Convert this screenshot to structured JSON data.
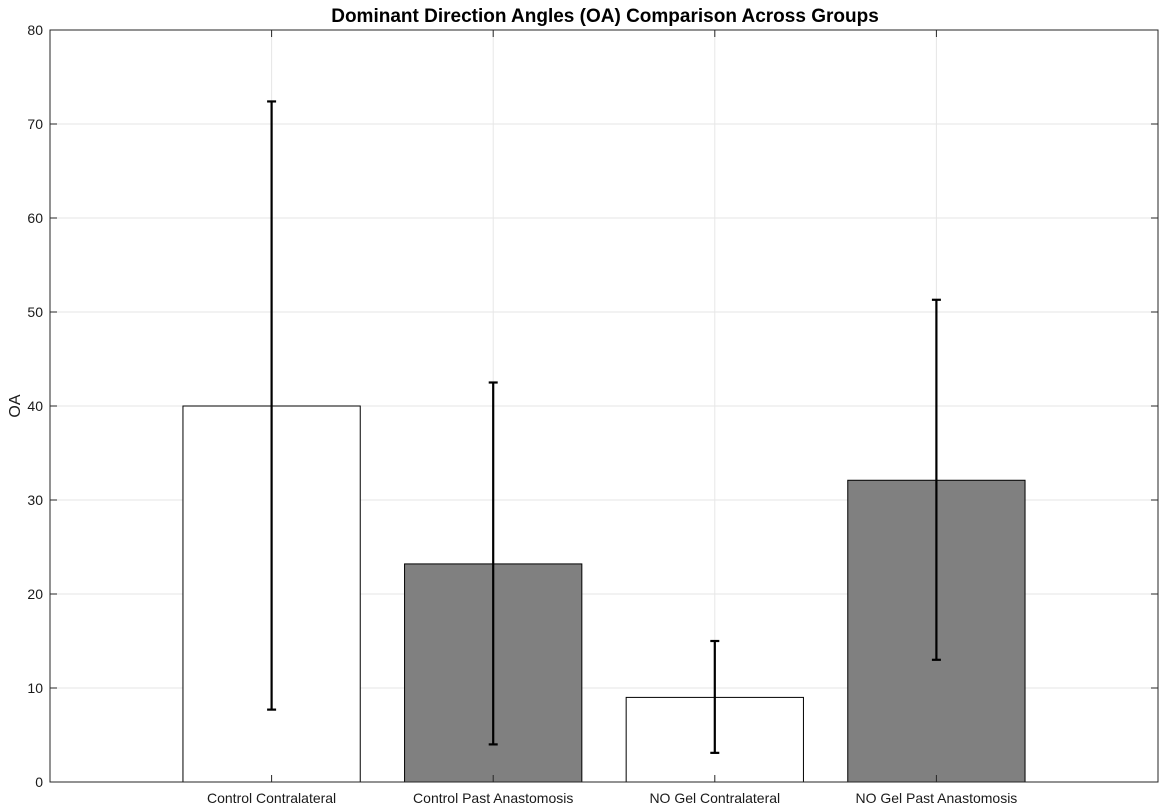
{
  "chart_data": {
    "type": "bar",
    "title": "Dominant Direction Angles (OA) Comparison Across Groups",
    "xlabel": "",
    "ylabel": "OA",
    "categories": [
      "Control Contralateral",
      "Control Past Anastomosis",
      "NO Gel Contralateral",
      "NO Gel Past Anastomosis"
    ],
    "values": [
      40.0,
      23.2,
      9.0,
      32.1
    ],
    "error_low": [
      7.7,
      4.0,
      3.1,
      13.0
    ],
    "error_high": [
      72.4,
      42.5,
      15.0,
      51.3
    ],
    "bar_colors": [
      "#ffffff",
      "#808080",
      "#ffffff",
      "#808080"
    ],
    "ylim": [
      0,
      80
    ],
    "xlim": [
      0,
      5
    ],
    "yticks": [
      0,
      10,
      20,
      30,
      40,
      50,
      60,
      70,
      80
    ],
    "grid": true,
    "legend": "none"
  }
}
